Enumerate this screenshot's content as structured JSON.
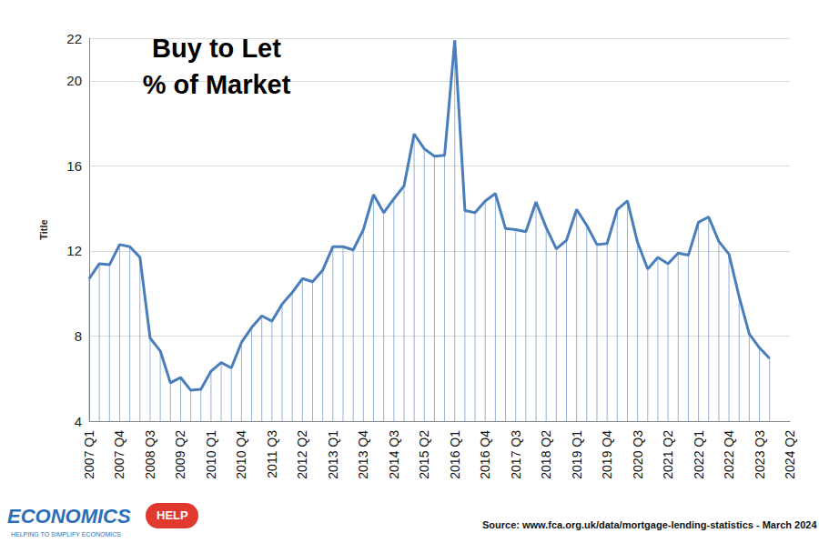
{
  "chart_data": {
    "type": "line",
    "title": "Buy to Let\n% of Market",
    "y_label": "Title",
    "source": "Source: www.fca.org.uk/data/mortgage-lending-statistics - March 2024",
    "logo": {
      "text": "ECONOMICS",
      "badge": "HELP",
      "tagline": "HELPING TO SIMPLIFY ECONOMICS"
    },
    "categories": [
      "2007 Q1",
      null,
      null,
      "2007 Q4",
      null,
      null,
      "2008 Q3",
      null,
      null,
      "2009 Q2",
      null,
      null,
      "2010 Q1",
      null,
      null,
      "2010 Q4",
      null,
      null,
      "2011 Q3",
      null,
      null,
      "2012 Q2",
      null,
      null,
      "2013 Q1",
      null,
      null,
      "2013 Q4",
      null,
      null,
      "2014 Q3",
      null,
      null,
      "2015 Q2",
      null,
      null,
      "2016 Q1",
      null,
      null,
      "2016 Q4",
      null,
      null,
      "2017 Q3",
      null,
      null,
      "2018 Q2",
      null,
      null,
      "2019 Q1",
      null,
      null,
      "2019 Q4",
      null,
      null,
      "2020 Q3",
      null,
      null,
      "2021 Q2",
      null,
      null,
      "2022 Q1",
      null,
      null,
      "2022 Q4",
      null,
      null,
      "2023 Q3",
      null,
      null,
      "2024 Q2"
    ],
    "values": [
      10.7,
      11.4,
      11.35,
      12.3,
      12.2,
      11.7,
      7.9,
      7.3,
      5.8,
      6.05,
      5.45,
      5.5,
      6.35,
      6.75,
      6.5,
      7.7,
      8.4,
      8.95,
      8.7,
      9.5,
      10.05,
      10.7,
      10.55,
      11.1,
      12.2,
      12.2,
      12.05,
      13.0,
      14.65,
      13.8,
      14.45,
      15.05,
      17.5,
      16.8,
      16.45,
      16.5,
      21.9,
      13.9,
      13.8,
      14.35,
      14.7,
      13.05,
      13.0,
      12.9,
      14.3,
      13.1,
      12.1,
      12.5,
      13.95,
      13.2,
      12.3,
      12.35,
      13.95,
      14.35,
      12.4,
      11.15,
      11.7,
      11.4,
      11.9,
      11.8,
      13.35,
      13.6,
      12.45,
      11.85,
      9.85,
      8.1,
      7.45,
      6.95,
      null,
      null
    ],
    "color": "#4a7ebb",
    "marker": "none",
    "line_style": "solid",
    "ylim": [
      4,
      22
    ],
    "yticks": [
      4,
      8,
      12,
      16,
      20
    ],
    "grid": true
  }
}
